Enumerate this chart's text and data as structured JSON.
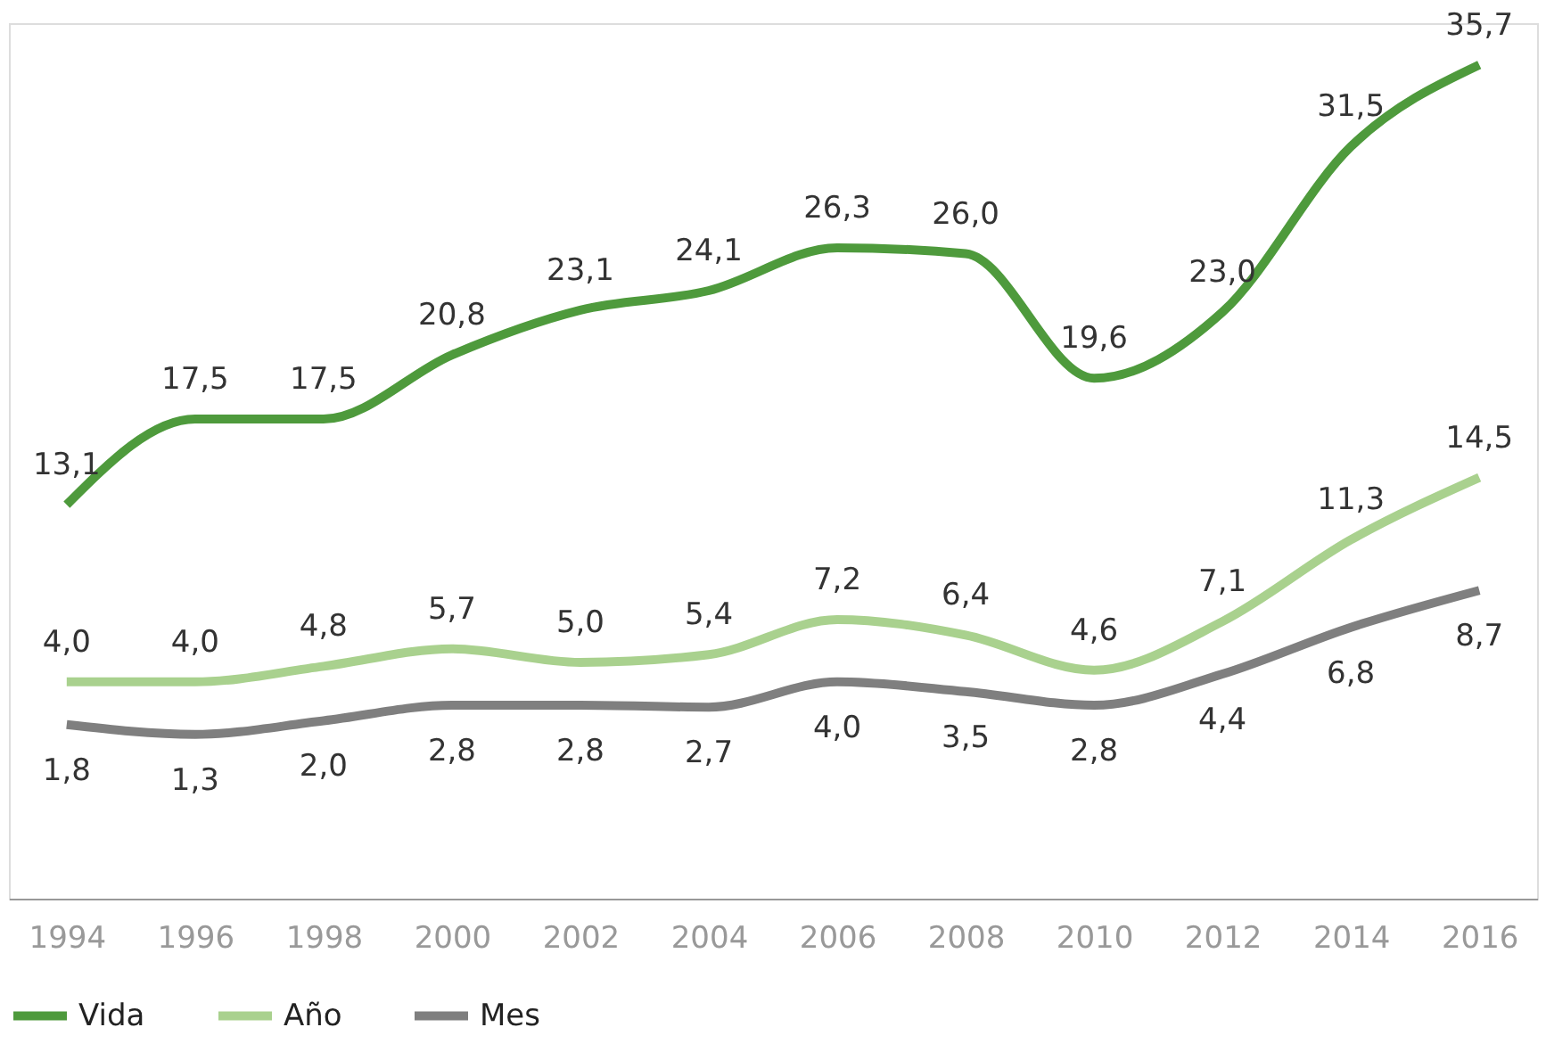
{
  "chart_data": {
    "type": "line",
    "categories": [
      "1994",
      "1996",
      "1998",
      "2000",
      "2002",
      "2004",
      "2006",
      "2008",
      "2010",
      "2012",
      "2014",
      "2016"
    ],
    "series": [
      {
        "name": "Vida",
        "color": "#4e9a3c",
        "values": [
          13.1,
          17.5,
          17.5,
          20.8,
          23.1,
          24.1,
          26.3,
          26.0,
          19.6,
          23.0,
          31.5,
          35.7
        ],
        "value_labels": [
          "13,1",
          "17,5",
          "17,5",
          "20,8",
          "23,1",
          "24,1",
          "26,3",
          "26,0",
          "19,6",
          "23,0",
          "31,5",
          "35,7"
        ]
      },
      {
        "name": "Año",
        "color": "#a9d18e",
        "values": [
          4.0,
          4.0,
          4.8,
          5.7,
          5.0,
          5.4,
          7.2,
          6.4,
          4.6,
          7.1,
          11.3,
          14.5
        ],
        "value_labels": [
          "4,0",
          "4,0",
          "4,8",
          "5,7",
          "5,0",
          "5,4",
          "7,2",
          "6,4",
          "4,6",
          "7,1",
          "11,3",
          "14,5"
        ]
      },
      {
        "name": "Mes",
        "color": "#7f7f7f",
        "values": [
          1.8,
          1.3,
          2.0,
          2.8,
          2.8,
          2.7,
          4.0,
          3.5,
          2.8,
          4.4,
          6.8,
          8.7
        ],
        "value_labels": [
          "1,8",
          "1,3",
          "2,0",
          "2,8",
          "2,8",
          "2,7",
          "4,0",
          "3,5",
          "2,8",
          "4,4",
          "6,8",
          "8,7"
        ]
      }
    ],
    "legend": "bottom",
    "grid": false,
    "marker": "none",
    "line_style": "solid"
  }
}
